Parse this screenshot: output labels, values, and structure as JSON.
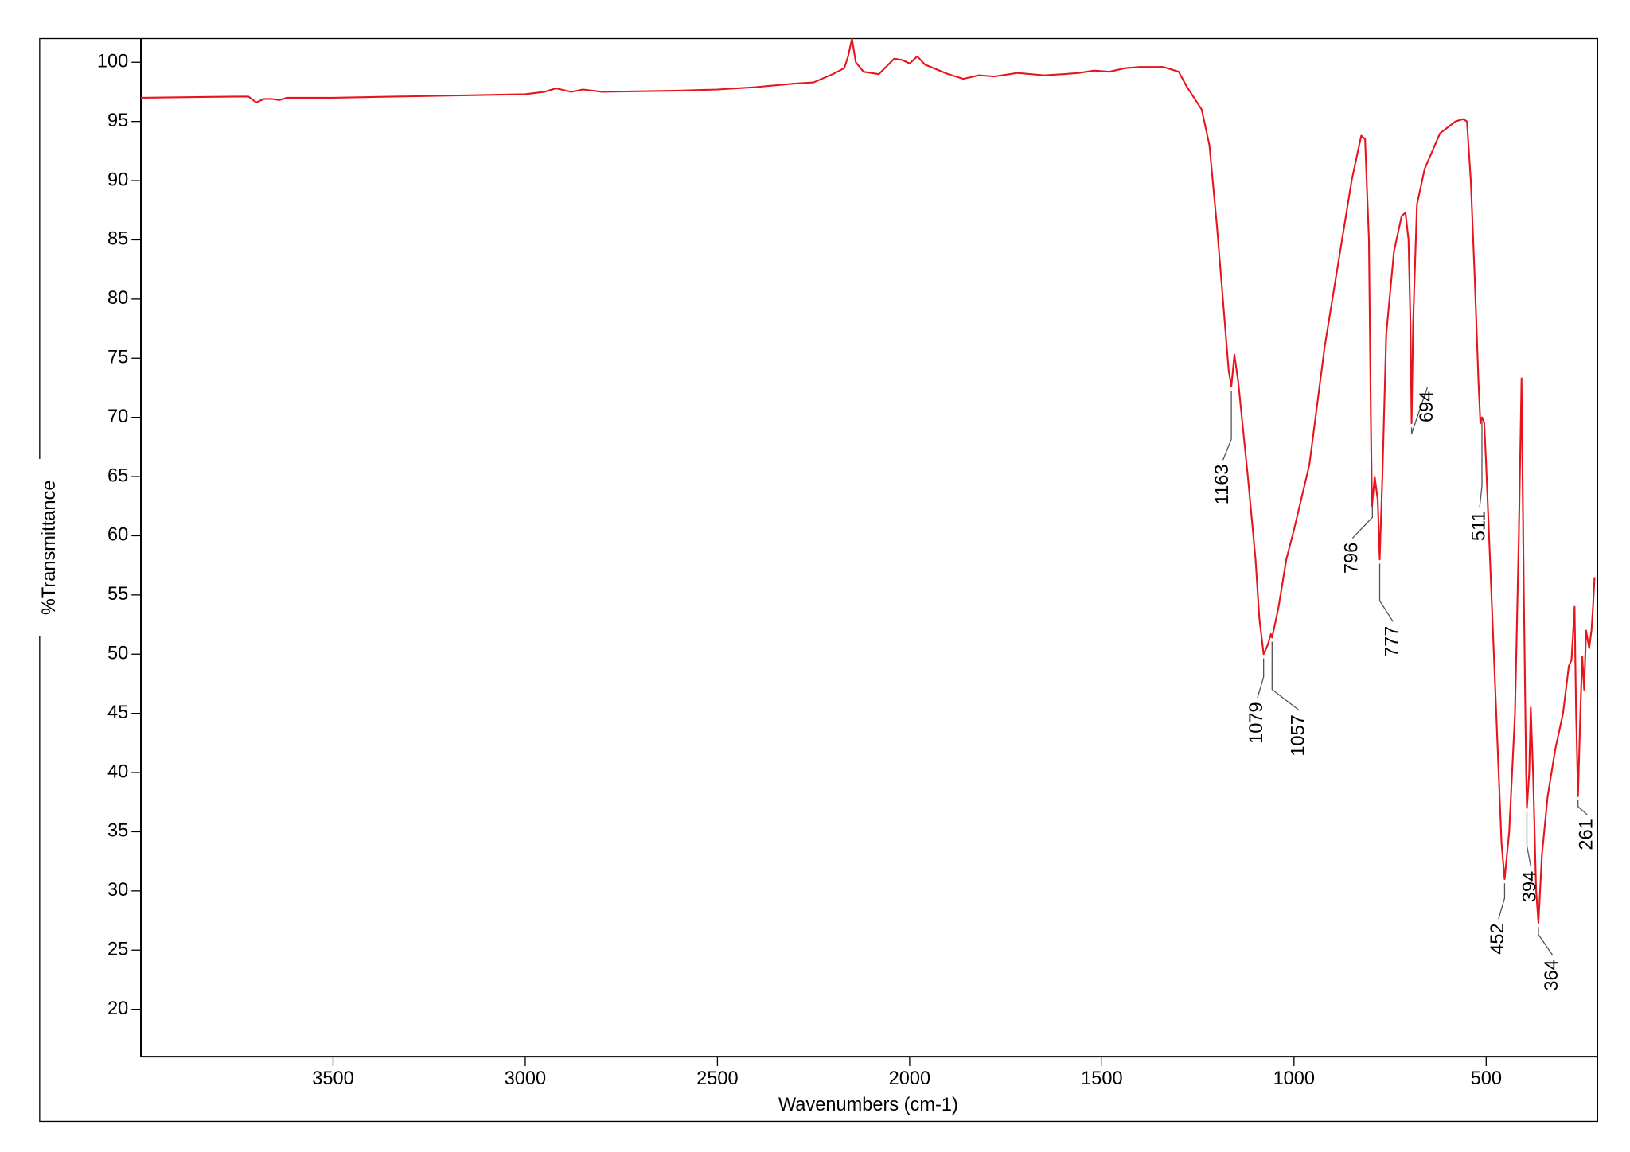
{
  "chart_data": {
    "type": "line",
    "x_label": "Wavenumbers (cm-1)",
    "y_label": "%Transmittance",
    "color": "#e8141b",
    "xlim": [
      4000,
      210
    ],
    "ylim": [
      16,
      102
    ],
    "xticks": [
      3500,
      3000,
      2500,
      2000,
      1500,
      1000,
      500
    ],
    "yticks": [
      20,
      25,
      30,
      35,
      40,
      45,
      50,
      55,
      60,
      65,
      70,
      75,
      80,
      85,
      90,
      95,
      100
    ],
    "grid": false,
    "x": [
      4000,
      3750,
      3720,
      3700,
      3680,
      3660,
      3640,
      3620,
      3500,
      3000,
      2950,
      2920,
      2880,
      2850,
      2800,
      2600,
      2500,
      2400,
      2300,
      2250,
      2200,
      2170,
      2160,
      2150,
      2140,
      2120,
      2080,
      2040,
      2020,
      2000,
      1980,
      1960,
      1900,
      1860,
      1820,
      1780,
      1720,
      1650,
      1600,
      1560,
      1520,
      1480,
      1440,
      1400,
      1340,
      1300,
      1280,
      1240,
      1220,
      1200,
      1180,
      1170,
      1163,
      1155,
      1145,
      1120,
      1100,
      1090,
      1079,
      1068,
      1060,
      1057,
      1040,
      1020,
      1000,
      960,
      920,
      880,
      850,
      825,
      815,
      805,
      800,
      797,
      790,
      782,
      777,
      770,
      760,
      740,
      720,
      710,
      702,
      697,
      694,
      690,
      680,
      660,
      640,
      620,
      600,
      580,
      560,
      550,
      540,
      530,
      520,
      515,
      511,
      505,
      500,
      480,
      470,
      460,
      452,
      440,
      425,
      415,
      408,
      402,
      396,
      394,
      388,
      384,
      378,
      370,
      364,
      355,
      340,
      320,
      300,
      285,
      278,
      270,
      266,
      261,
      255,
      250,
      245,
      240,
      232,
      226,
      222,
      218
    ],
    "values": [
      97.0,
      97.1,
      97.1,
      96.6,
      96.9,
      96.9,
      96.8,
      97.0,
      97.0,
      97.3,
      97.5,
      97.8,
      97.5,
      97.7,
      97.5,
      97.6,
      97.7,
      97.9,
      98.2,
      98.3,
      99.0,
      99.5,
      100.5,
      102.0,
      100.0,
      99.2,
      99.0,
      100.3,
      100.2,
      99.9,
      100.5,
      99.8,
      99.0,
      98.6,
      98.9,
      98.8,
      99.1,
      98.9,
      99.0,
      99.1,
      99.3,
      99.2,
      99.5,
      99.6,
      99.6,
      99.2,
      98.0,
      96.0,
      93.0,
      86.0,
      78.0,
      74.0,
      72.6,
      75.3,
      73.0,
      65.0,
      58.0,
      53.0,
      50.0,
      50.8,
      51.7,
      51.4,
      54.0,
      58.0,
      60.5,
      66.0,
      76.0,
      84.0,
      90.0,
      93.8,
      93.5,
      85.0,
      70.0,
      62.5,
      65.0,
      63.0,
      58.0,
      65.0,
      77.0,
      84.0,
      87.0,
      87.3,
      85.0,
      78.0,
      69.5,
      78.0,
      88.0,
      91.0,
      92.5,
      94.0,
      94.5,
      95.0,
      95.2,
      95.0,
      90.0,
      82.0,
      73.0,
      69.5,
      70.0,
      69.5,
      66.0,
      50.0,
      42.0,
      34.0,
      31.0,
      35.0,
      45.0,
      60.0,
      73.3,
      55.0,
      40.0,
      37.0,
      40.0,
      45.5,
      40.0,
      30.0,
      27.3,
      33.0,
      38.0,
      42.0,
      45.0,
      49.0,
      49.5,
      54.0,
      45.0,
      38.0,
      45.0,
      49.8,
      47.0,
      52.0,
      50.5,
      52.0,
      54.0,
      56.5
    ],
    "peak_labels": [
      1163,
      1079,
      1057,
      796,
      777,
      694,
      511,
      452,
      394,
      364,
      261
    ]
  }
}
